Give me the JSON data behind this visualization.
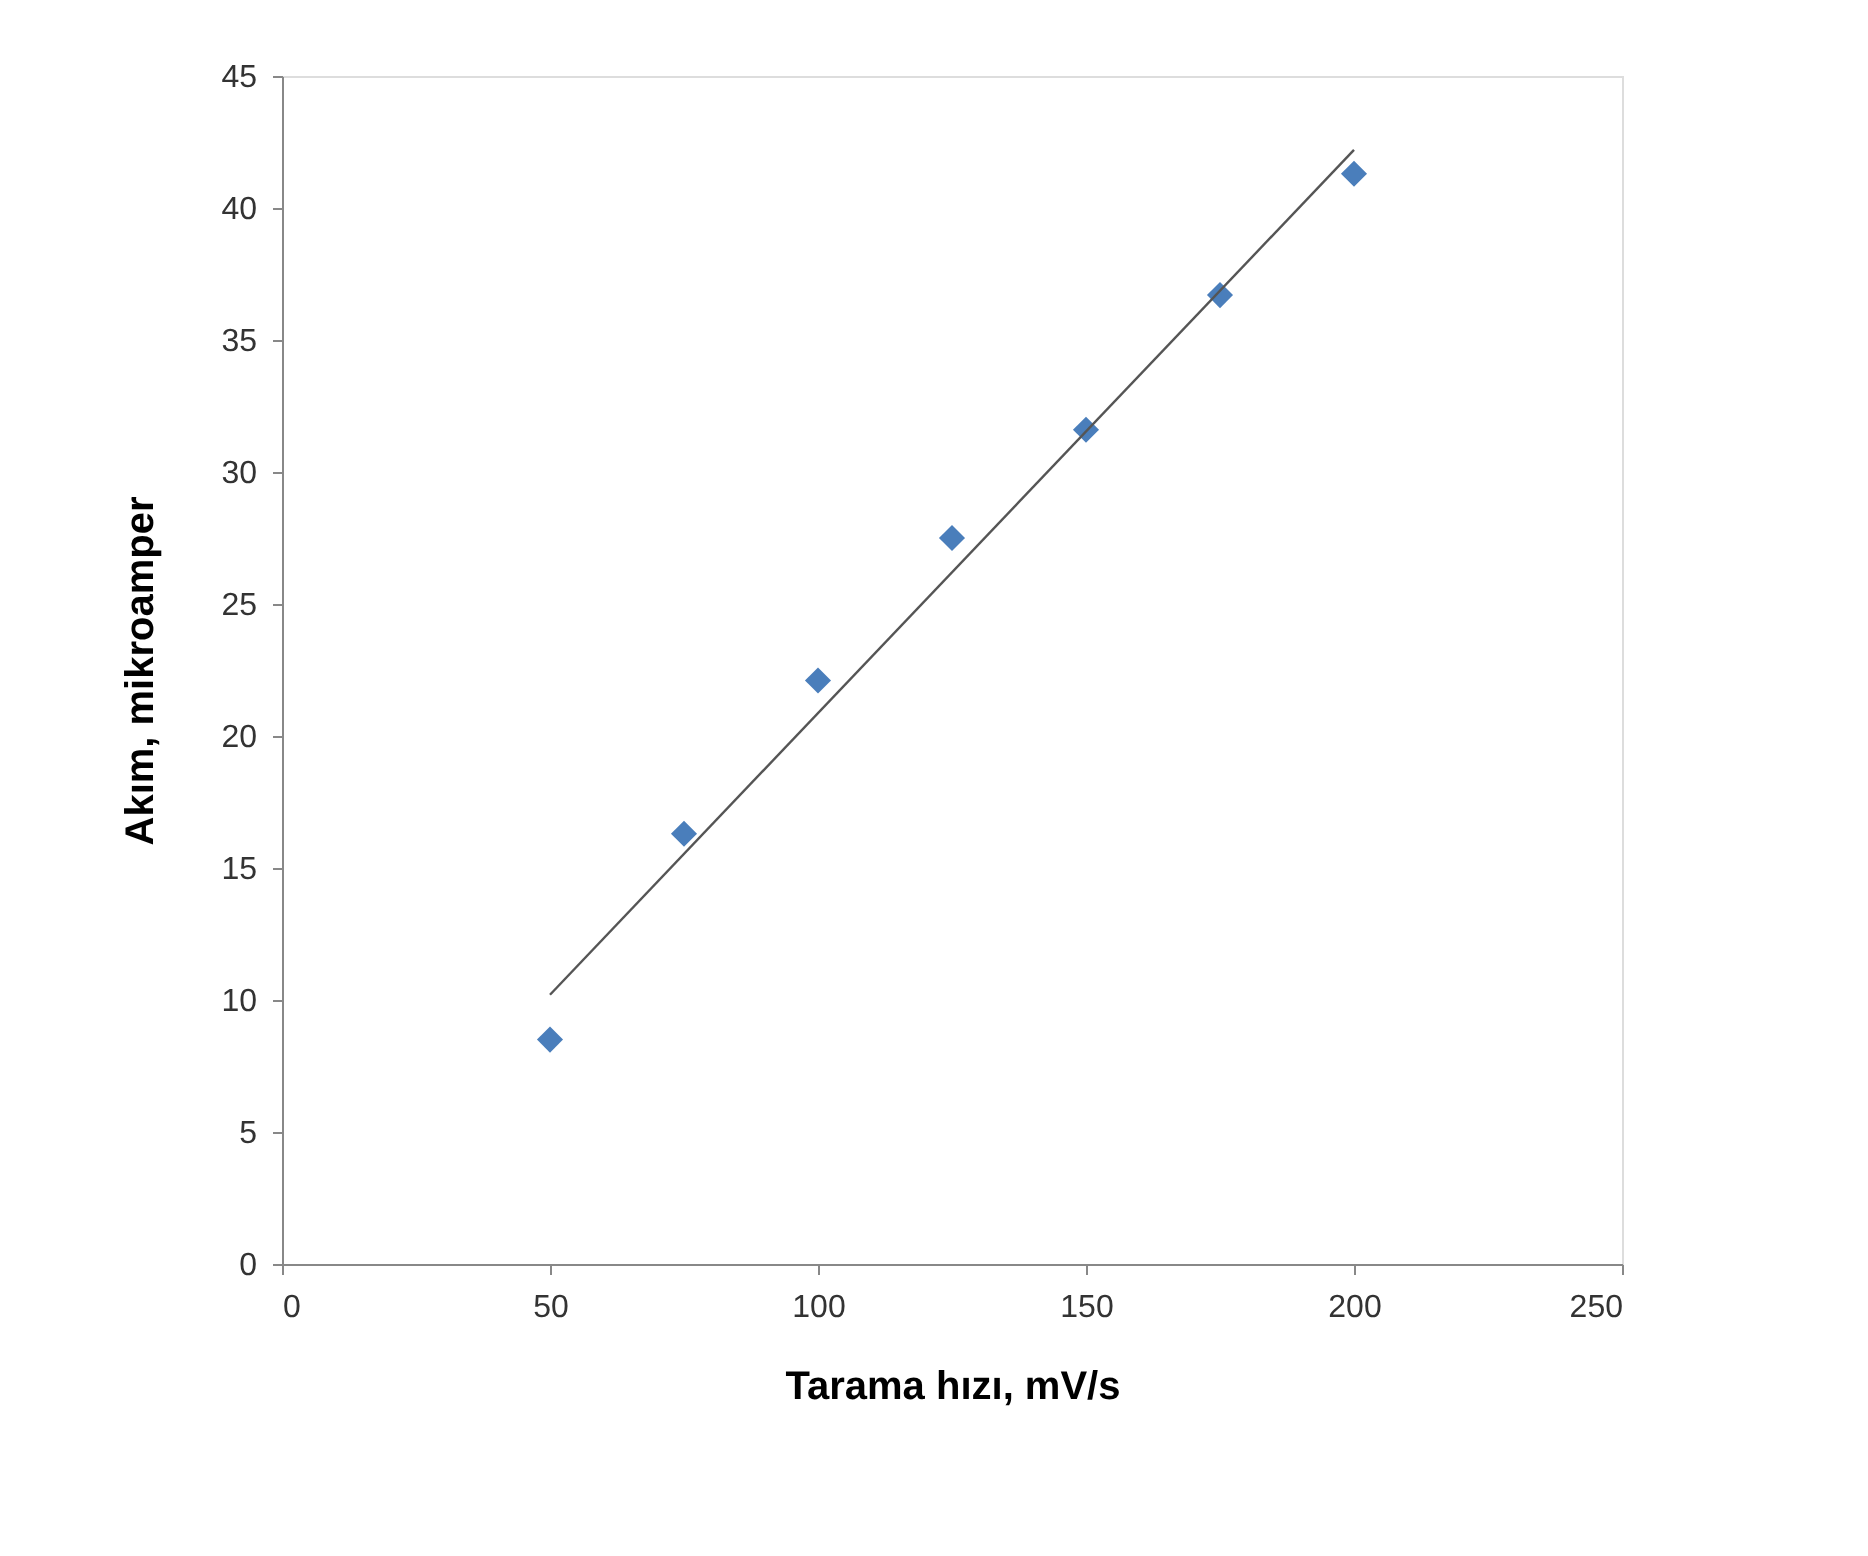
{
  "chart_data": {
    "type": "scatter",
    "xlabel": "Tarama hızı, mV/s",
    "ylabel": "Akım, mikroamper",
    "x": [
      50,
      75,
      100,
      125,
      150,
      175,
      200
    ],
    "series": [
      {
        "color": "#4a7ebb",
        "marker": "diamond",
        "values": [
          8.5,
          16.3,
          22.1,
          27.5,
          31.6,
          36.7,
          41.3
        ]
      },
      {
        "type": "line",
        "color": "#555555",
        "marker": "none",
        "x": [
          50,
          200
        ],
        "values": [
          10.2,
          42.2
        ]
      }
    ],
    "xlim": [
      0,
      250
    ],
    "xticks": [
      0,
      50,
      100,
      150,
      200,
      250
    ],
    "ylim": [
      0,
      45
    ],
    "yticks": [
      0,
      5,
      10,
      15,
      20,
      25,
      30,
      35,
      40,
      45
    ],
    "grid": false,
    "legend": false
  }
}
